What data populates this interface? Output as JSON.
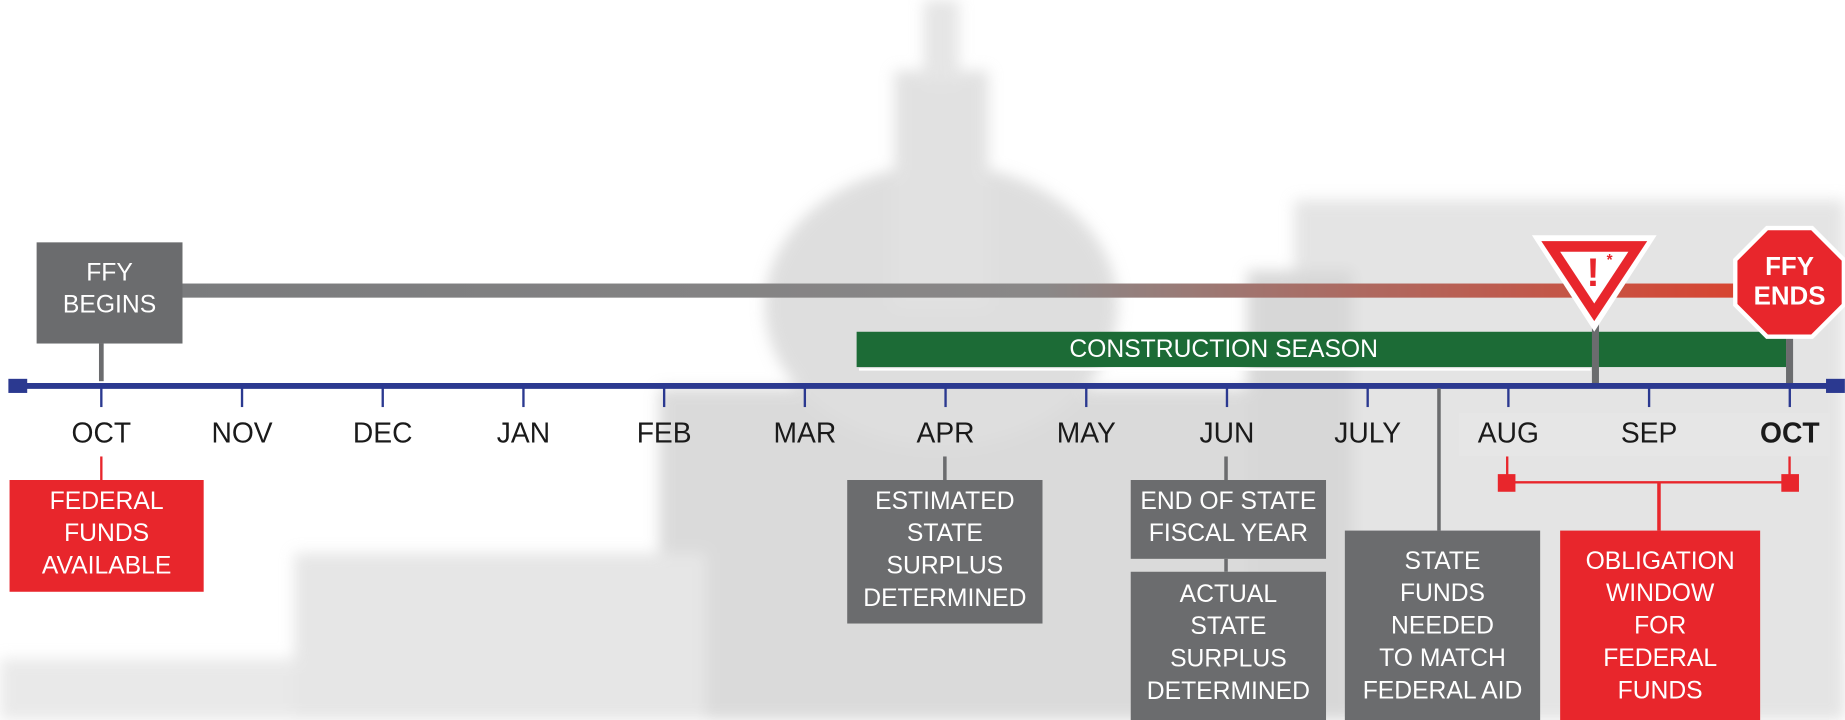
{
  "months": [
    "OCT",
    "NOV",
    "DEC",
    "JAN",
    "FEB",
    "MAR",
    "APR",
    "MAY",
    "JUN",
    "JULY",
    "AUG",
    "SEP",
    "OCT"
  ],
  "ffy_begins": [
    "FFY",
    "BEGINS"
  ],
  "ffy_ends": [
    "FFY",
    "ENDS"
  ],
  "warning": {
    "symbol": "!",
    "note": "*"
  },
  "construction_season": "CONSTRUCTION SEASON",
  "boxes": [
    {
      "lines": [
        "FEDERAL",
        "FUNDS",
        "AVAILABLE"
      ]
    },
    {
      "lines": [
        "ESTIMATED",
        "STATE",
        "SURPLUS",
        "DETERMINED"
      ]
    },
    {
      "lines": [
        "END OF STATE",
        "FISCAL YEAR"
      ]
    },
    {
      "lines": [
        "ACTUAL",
        "STATE",
        "SURPLUS",
        "DETERMINED"
      ]
    },
    {
      "lines": [
        "STATE",
        "FUNDS",
        "NEEDED",
        "TO MATCH",
        "FEDERAL AID"
      ]
    },
    {
      "lines": [
        "OBLIGATION",
        "WINDOW",
        "FOR",
        "FEDERAL",
        "FUNDS"
      ]
    }
  ]
}
